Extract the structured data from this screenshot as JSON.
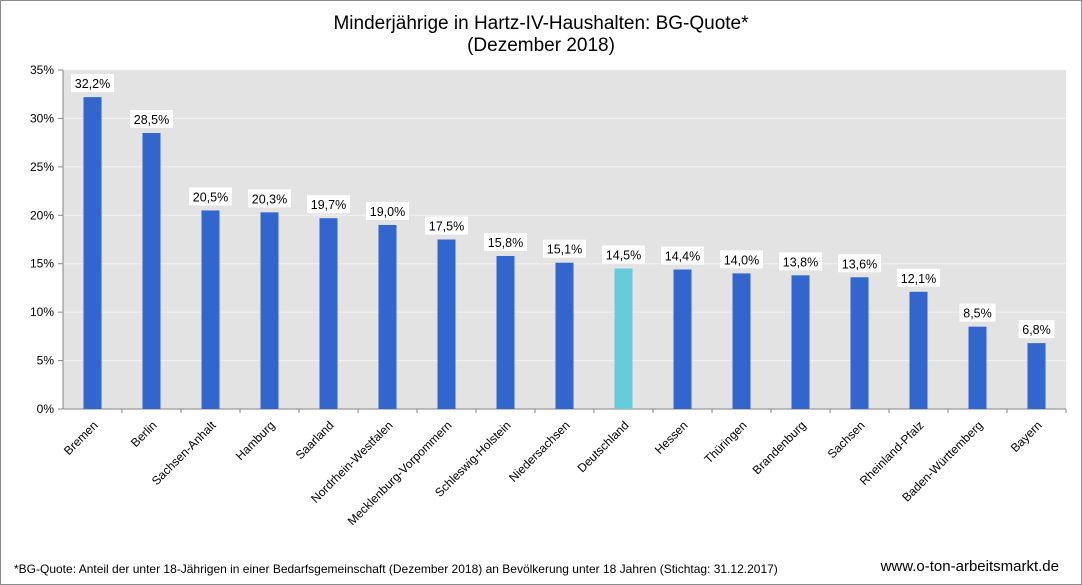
{
  "chart_data": {
    "type": "bar",
    "title": "Minderjährige in Hartz-IV-Haushalten: BG-Quote*",
    "subtitle": "(Dezember 2018)",
    "xlabel": "",
    "ylabel": "",
    "ylim": [
      0,
      35
    ],
    "yticks": [
      "0%",
      "5%",
      "10%",
      "15%",
      "20%",
      "25%",
      "30%",
      "35%"
    ],
    "ytick_values": [
      0,
      5,
      10,
      15,
      20,
      25,
      30,
      35
    ],
    "grid": true,
    "legend": "none",
    "categories": [
      "Bremen",
      "Berlin",
      "Sachsen-Anhalt",
      "Hamburg",
      "Saarland",
      "Nordrhein-Westfalen",
      "Mecklenburg-Vorpommern",
      "Schleswig-Holstein",
      "Niedersachsen",
      "Deutschland",
      "Hessen",
      "Thüringen",
      "Brandenburg",
      "Sachsen",
      "Rheinland-Pfalz",
      "Baden-Württemberg",
      "Bayern"
    ],
    "values": [
      32.2,
      28.5,
      20.5,
      20.3,
      19.7,
      19.0,
      17.5,
      15.8,
      15.1,
      14.5,
      14.4,
      14.0,
      13.8,
      13.6,
      12.1,
      8.5,
      6.8
    ],
    "data_labels": [
      "32,2%",
      "28,5%",
      "20,5%",
      "20,3%",
      "19,7%",
      "19,0%",
      "17,5%",
      "15,8%",
      "15,1%",
      "14,5%",
      "14,4%",
      "14,0%",
      "13,8%",
      "13,6%",
      "12,1%",
      "8,5%",
      "6,8%"
    ],
    "highlight_category": "Deutschland",
    "colors": {
      "bar": "#3366cc",
      "highlight": "#66ccd9",
      "plot_background": "#e3e3e3",
      "gridline": "#f2f2f2"
    }
  },
  "footnote": "*BG-Quote: Anteil  der unter 18-Jährigen in einer Bedarfsgemeinschaft (Dezember 2018) an Bevölkerung unter 18 Jahren (Stichtag: 31.12.2017)",
  "source": "www.o-ton-arbeitsmarkt.de"
}
